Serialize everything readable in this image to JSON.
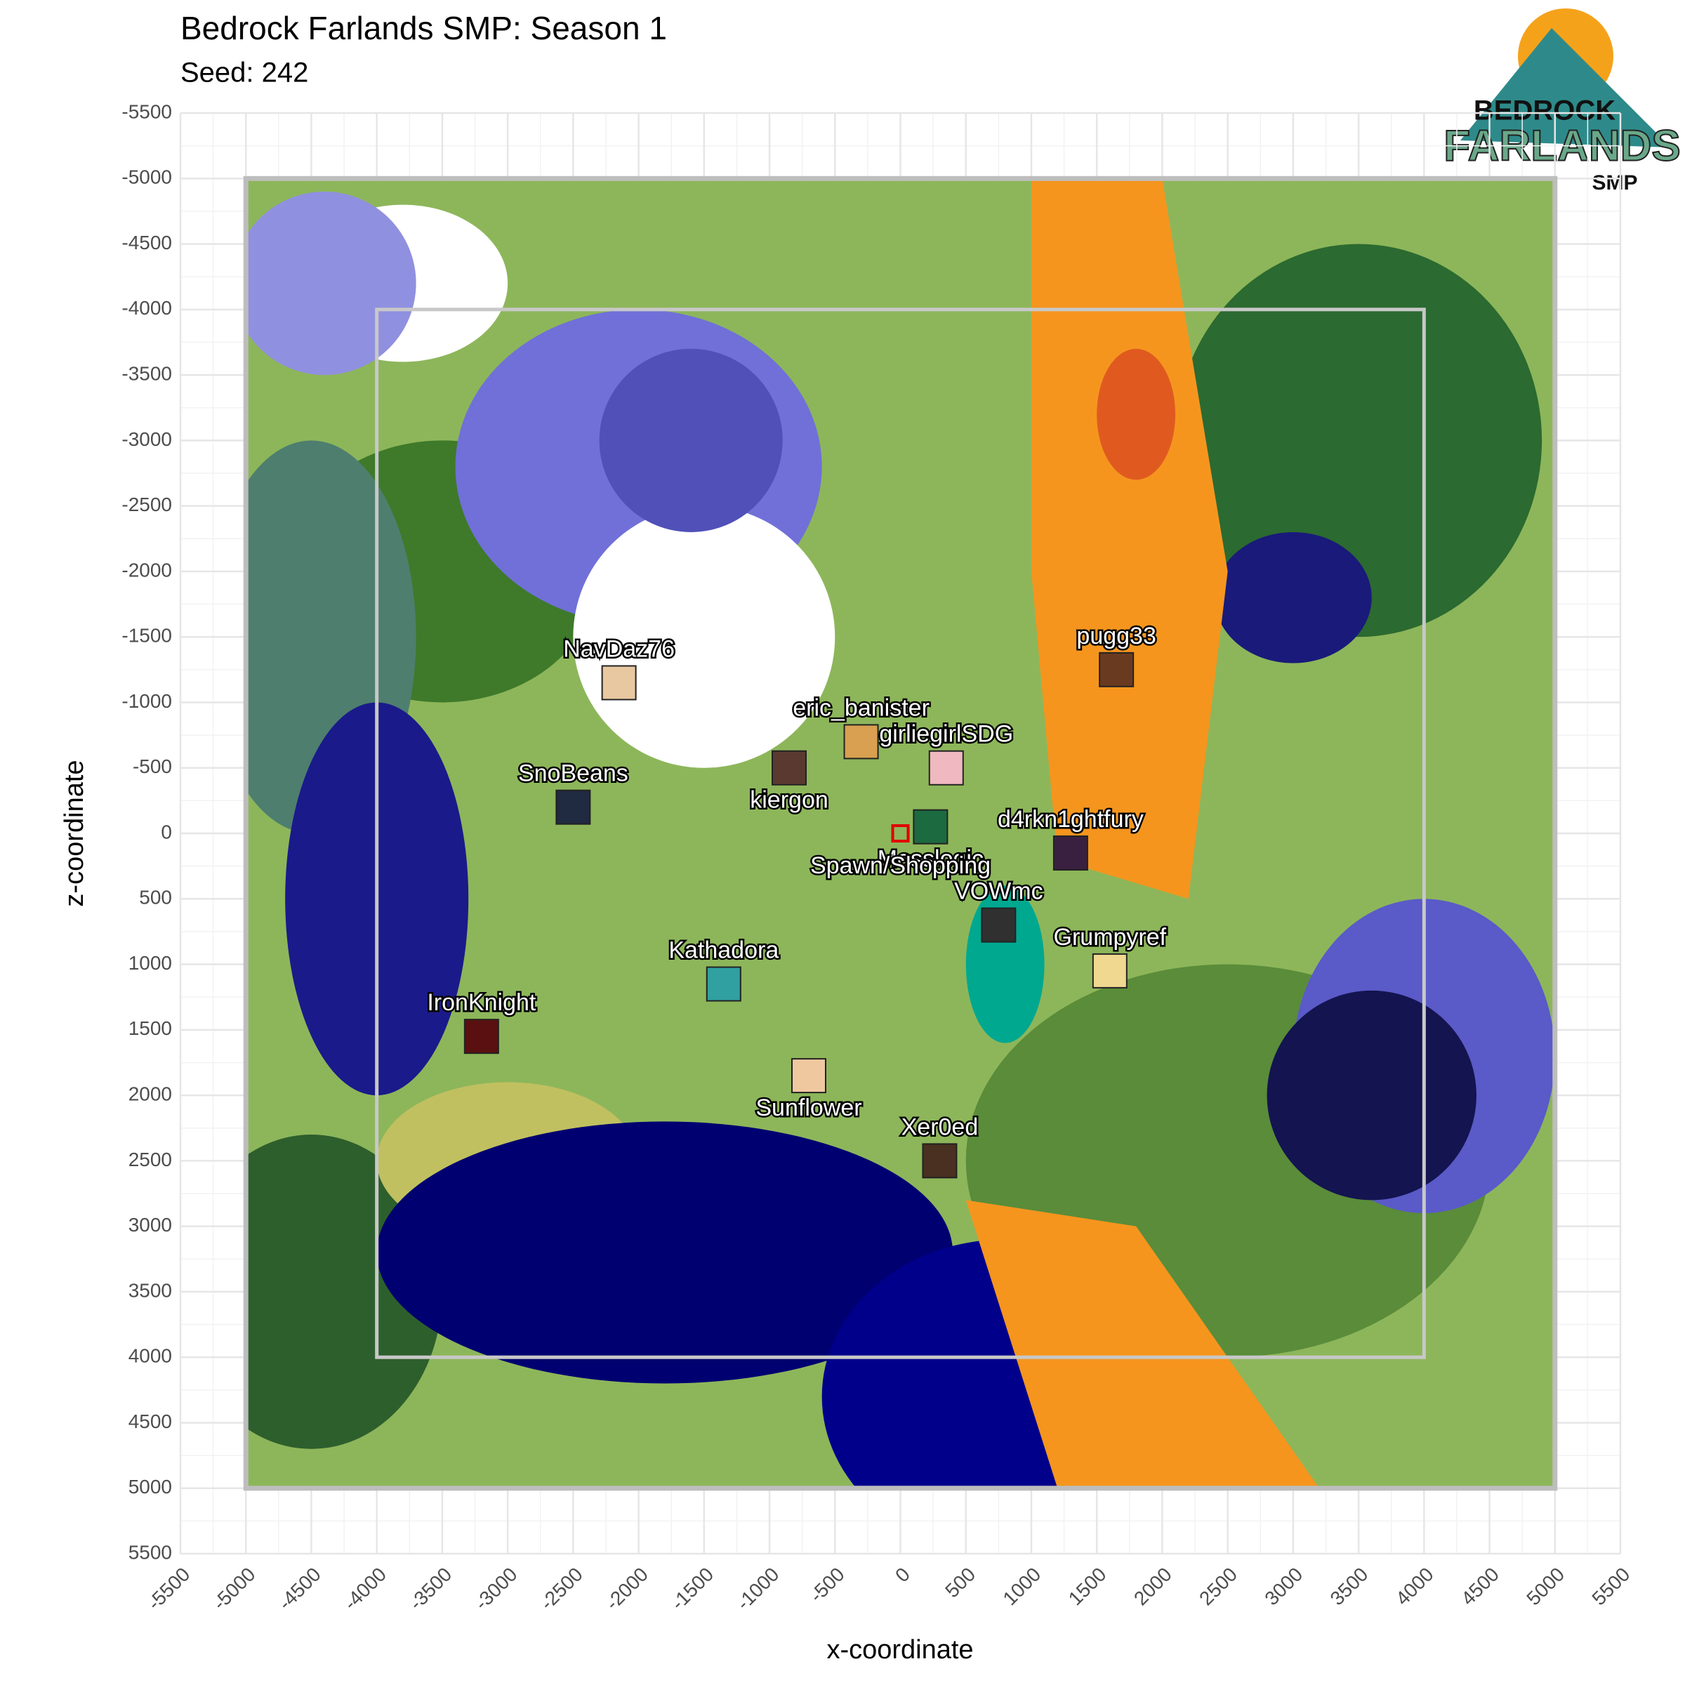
{
  "chart_data": {
    "type": "scatter",
    "title": "Bedrock Farlands SMP: Season 1",
    "subtitle": "Seed: 242",
    "x_label": "x-coordinate",
    "y_label": "z-coordinate",
    "labels": [
      "NavDaz76",
      "eric_banister",
      "kiergon",
      "girliegirlSDG",
      "SnoBeans",
      "Mosslogic",
      "Spawn/Shopping",
      "d4rkn1ghtfury",
      "VOWmc",
      "pugg33",
      "Grumpyref",
      "Kathadora",
      "IronKnight",
      "Sunflower",
      "Xer0ed"
    ],
    "x": [
      -2150,
      -300,
      -850,
      350,
      -2500,
      230,
      0,
      1300,
      750,
      1650,
      1600,
      -1350,
      -3200,
      -700,
      300
    ],
    "values": [
      -1150,
      -700,
      -500,
      -500,
      -200,
      -50,
      0,
      150,
      700,
      -1250,
      1050,
      1150,
      1550,
      1850,
      2500
    ],
    "colors": [
      "#e8c8a0",
      "#d8a050",
      "#5a3a30",
      "#f0b8c0",
      "#202a40",
      "#1c6a40",
      "#e00000",
      "#3a2040",
      "#303030",
      "#6a3a20",
      "#f0d890",
      "#30a0a0",
      "#5a1010",
      "#f0c8a0",
      "#4a3020"
    ],
    "xlim": [
      -5500,
      5500
    ],
    "ylim": [
      5500,
      -5500
    ],
    "xticks": [
      -5500,
      -5000,
      -4500,
      -4000,
      -3500,
      -3000,
      -2500,
      -2000,
      -1500,
      -1000,
      -500,
      0,
      500,
      1000,
      1500,
      2000,
      2500,
      3000,
      3500,
      4000,
      4500,
      5000,
      5500
    ],
    "yticks": [
      -5500,
      -5000,
      -4500,
      -4000,
      -3500,
      -3000,
      -2500,
      -2000,
      -1500,
      -1000,
      -500,
      0,
      500,
      1000,
      1500,
      2000,
      2500,
      3000,
      3500,
      4000,
      4500,
      5000,
      5500
    ],
    "grid": true
  },
  "logo": {
    "line1": "BEDROCK",
    "line2": "FARLANDS",
    "line3": "SMP"
  }
}
